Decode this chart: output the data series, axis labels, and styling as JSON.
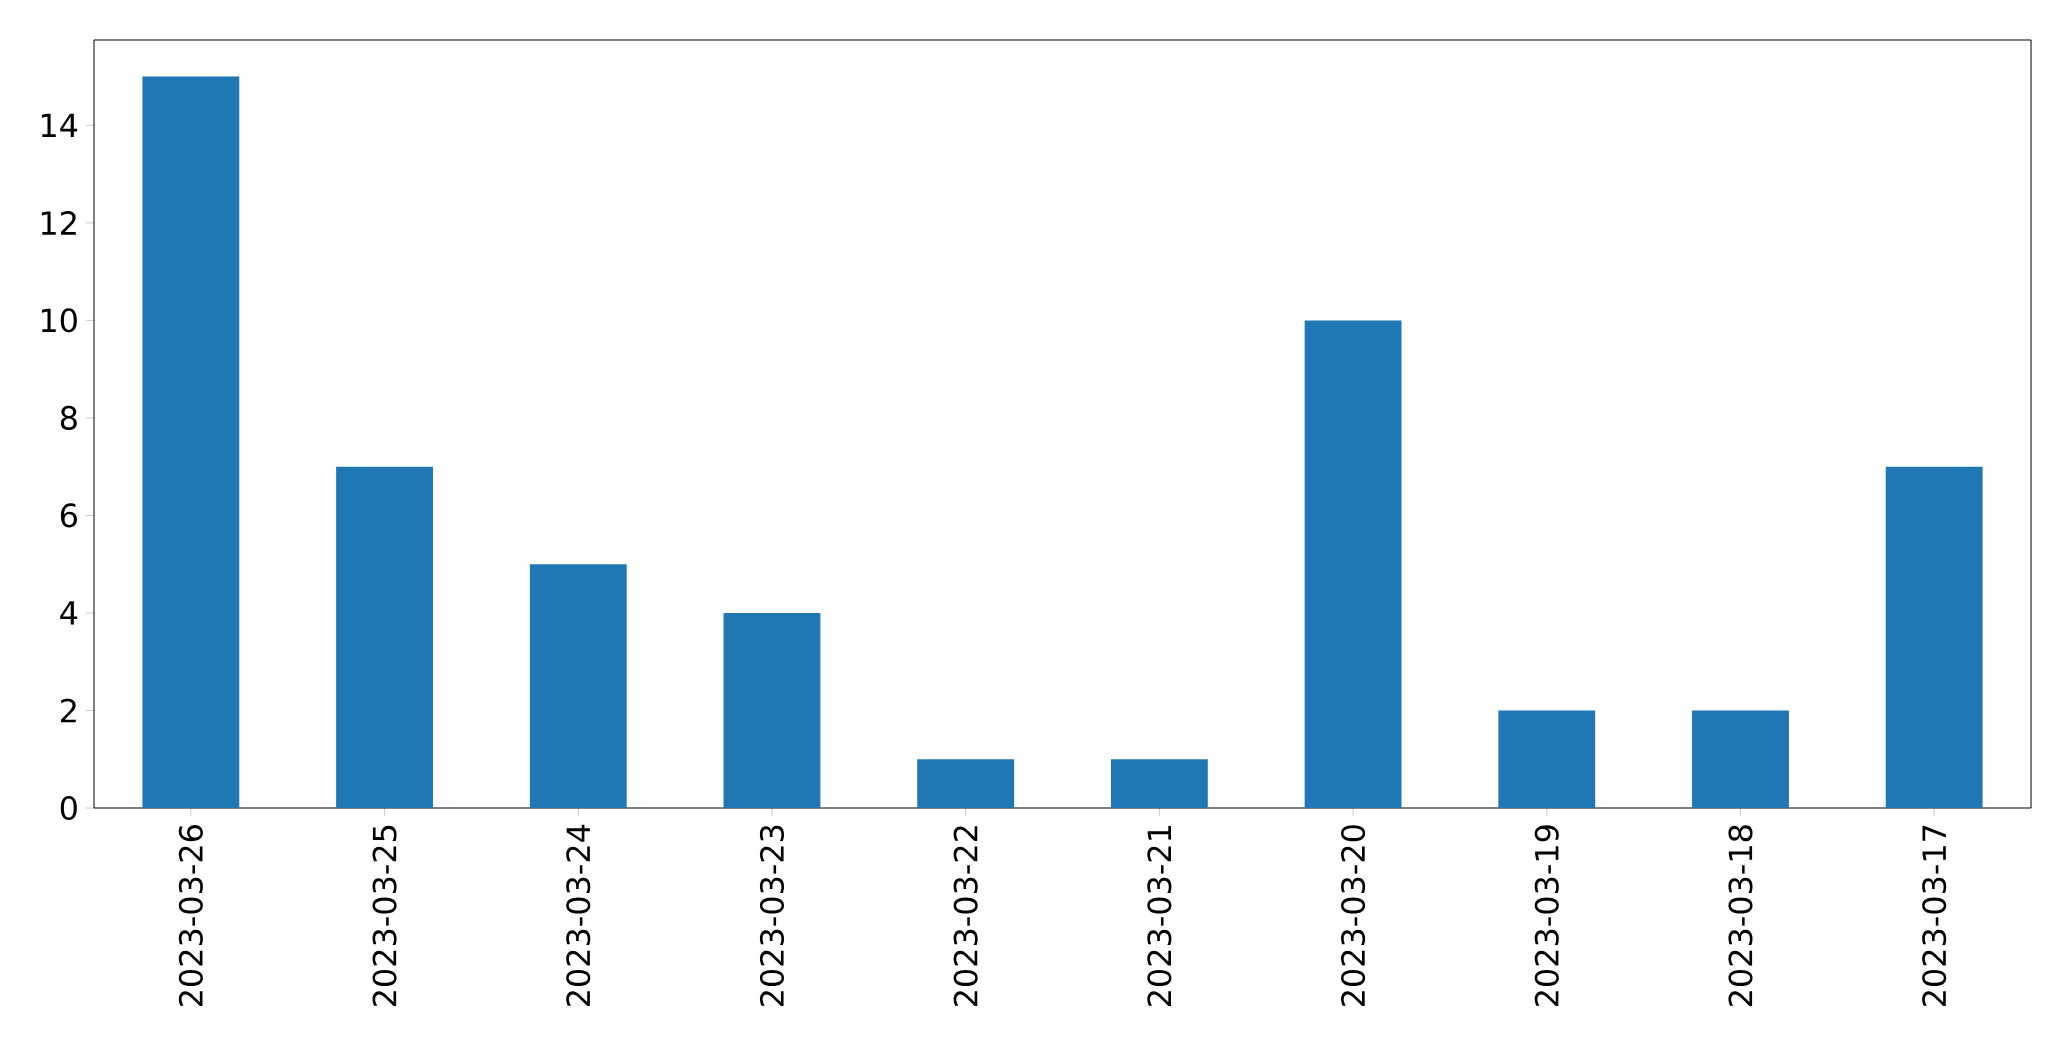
{
  "chart_data": {
    "type": "bar",
    "categories": [
      "2023-03-26",
      "2023-03-25",
      "2023-03-24",
      "2023-03-23",
      "2023-03-22",
      "2023-03-21",
      "2023-03-20",
      "2023-03-19",
      "2023-03-18",
      "2023-03-17"
    ],
    "values": [
      15,
      7,
      5,
      4,
      1,
      1,
      10,
      2,
      2,
      7
    ],
    "color": "#1f77b4",
    "ylim": [
      0,
      15.75
    ],
    "yticks": [
      0,
      2,
      4,
      6,
      8,
      10,
      12,
      14
    ],
    "grid": false
  }
}
